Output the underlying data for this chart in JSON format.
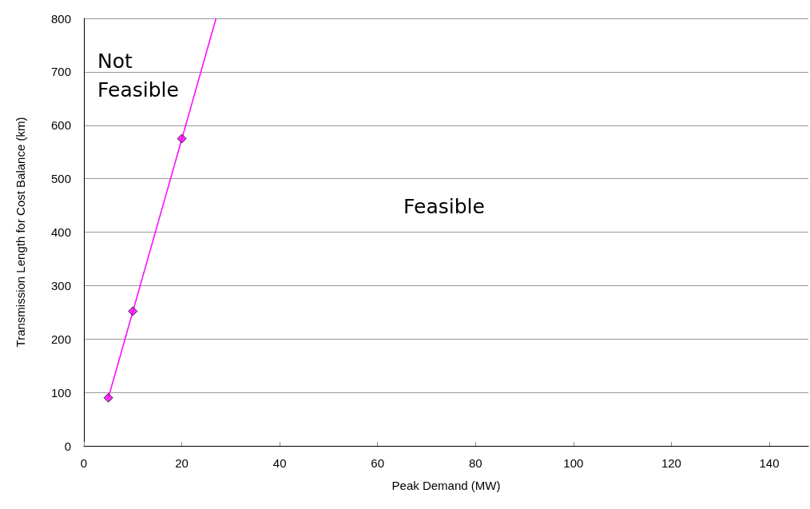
{
  "chart_data": {
    "type": "scatter",
    "xlabel": "Peak Demand (MW)",
    "ylabel": "Transmission Length for Cost Balance (km)",
    "xlim": [
      0,
      148
    ],
    "xticks": [
      0,
      20,
      40,
      60,
      80,
      100,
      120,
      140
    ],
    "ylim": [
      0,
      800
    ],
    "yticks": [
      0,
      100,
      200,
      300,
      400,
      500,
      600,
      700,
      800
    ],
    "grid": "y",
    "marker": "diamond",
    "annotations": [
      "Not\nFeasible",
      "Feasible"
    ],
    "series": [
      {
        "color": "#ff00ff",
        "x": [
          5,
          10,
          20
        ],
        "values": [
          90,
          252,
          575
        ]
      },
      {
        "type": "line",
        "color": "#ff00ff",
        "marker": "none",
        "line_style": "solid",
        "x": [
          5,
          27
        ],
        "values": [
          90,
          800
        ]
      }
    ]
  }
}
